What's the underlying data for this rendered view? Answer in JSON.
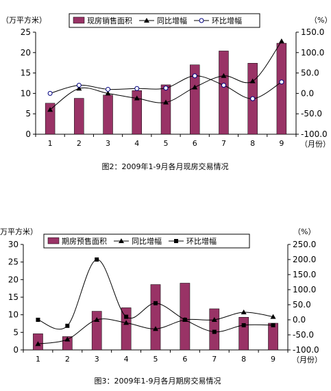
{
  "chart_data": [
    {
      "type": "bar",
      "title": "图2：2009年1-9月各月现房交易情况",
      "categories": [
        "1",
        "2",
        "3",
        "4",
        "5",
        "6",
        "7",
        "8",
        "9"
      ],
      "xlabel": "（月份）",
      "ylabel_left": "（万平方米）",
      "ylabel_right": "（%）",
      "ylim_left": [
        0,
        25
      ],
      "yticks_left": [
        "0",
        "5",
        "10",
        "15",
        "20",
        "25"
      ],
      "ylim_right": [
        -100,
        150
      ],
      "yticks_right": [
        "-100.0",
        "-50.0",
        "0.0",
        "50.0",
        "100.0",
        "150.0"
      ],
      "grid": false,
      "legend_position": "top",
      "series": [
        {
          "name": "现房销售面积",
          "kind": "bar",
          "axis": "left",
          "color": "#993366",
          "values": [
            7.6,
            8.8,
            9.6,
            10.7,
            12.1,
            17.0,
            20.4,
            17.4,
            22.3
          ]
        },
        {
          "name": "同比增幅",
          "kind": "line",
          "marker": "triangle",
          "axis": "right",
          "color": "#000000",
          "values": [
            -40,
            12,
            0,
            -12,
            -22,
            15,
            43,
            30,
            128
          ]
        },
        {
          "name": "环比增幅",
          "kind": "line",
          "marker": "circle",
          "axis": "right",
          "color": "#000000",
          "values": [
            0,
            20,
            10,
            12,
            13,
            43,
            20,
            -13,
            28
          ]
        }
      ]
    },
    {
      "type": "bar",
      "title": "图3：2009年1-9月各月期房交易情况",
      "categories": [
        "1",
        "2",
        "3",
        "4",
        "5",
        "6",
        "7",
        "8",
        "9"
      ],
      "xlabel": "（月份）",
      "ylabel_left": "万平方米）",
      "ylabel_right": "（%）",
      "ylim_left": [
        0,
        30
      ],
      "yticks_left": [
        "0",
        "5",
        "10",
        "15",
        "20",
        "25",
        "30"
      ],
      "ylim_right": [
        -100,
        250
      ],
      "yticks_right": [
        "-100.0",
        "-50.0",
        "0.0",
        "50.0",
        "100.0",
        "150.0",
        "200.0",
        "250.0"
      ],
      "grid": false,
      "legend_position": "top",
      "series": [
        {
          "name": "期房预售面积",
          "kind": "bar",
          "axis": "left",
          "color": "#993366",
          "values": [
            4.6,
            3.8,
            11.0,
            12.0,
            18.6,
            19.0,
            11.7,
            9.3,
            7.6
          ]
        },
        {
          "name": "同比增幅",
          "kind": "line",
          "marker": "triangle",
          "axis": "right",
          "color": "#000000",
          "values": [
            -80,
            -65,
            0,
            -10,
            -30,
            0,
            0,
            25,
            10
          ]
        },
        {
          "name": "环比增幅",
          "kind": "line",
          "marker": "square",
          "axis": "right",
          "color": "#000000",
          "values": [
            0,
            -20,
            200,
            10,
            55,
            0,
            -40,
            -18,
            -18
          ]
        }
      ]
    }
  ]
}
